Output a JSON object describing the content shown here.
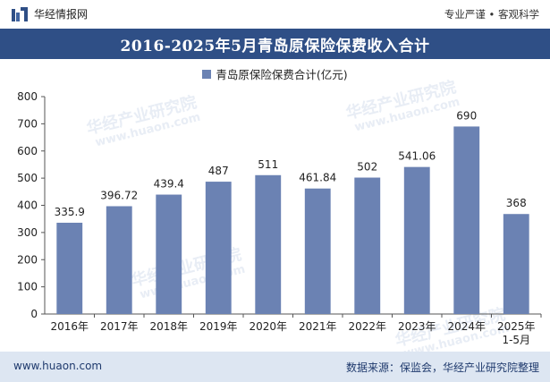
{
  "header": {
    "brand_name": "华经情报网",
    "tagline": "专业严谨 • 客观科学"
  },
  "chart_data": {
    "type": "bar",
    "title": "2016-2025年5月青岛原保险保费收入合计",
    "categories": [
      "2016年",
      "2017年",
      "2018年",
      "2019年",
      "2020年",
      "2021年",
      "2022年",
      "2023年",
      "2024年",
      "2025年\n1-5月"
    ],
    "series": [
      {
        "name": "青岛原保险保费合计(亿元)",
        "values": [
          335.9,
          396.72,
          439.4,
          487,
          511,
          461.84,
          502,
          541.06,
          690,
          368
        ],
        "labels": [
          "335.9",
          "396.72",
          "439.4",
          "487",
          "511",
          "461.84",
          "502",
          "541.06",
          "690",
          "368"
        ]
      }
    ],
    "ylim": [
      0,
      800
    ],
    "yticks": [
      "0",
      "100",
      "200",
      "300",
      "400",
      "500",
      "600",
      "700",
      "800"
    ],
    "grid": false,
    "legend_position": "top-center",
    "bar_color": "#6b82b3"
  },
  "footer": {
    "site_url": "www.huaon.com",
    "source_note": "数据来源：保监会，华经产业研究院整理"
  },
  "colors": {
    "title_bar": "#2f4f86",
    "footer_bar": "#dde6f2",
    "accent_text": "#1f3a6d"
  },
  "watermark": {
    "brand": "华经产业研究院",
    "url": "www.huaon.com"
  }
}
